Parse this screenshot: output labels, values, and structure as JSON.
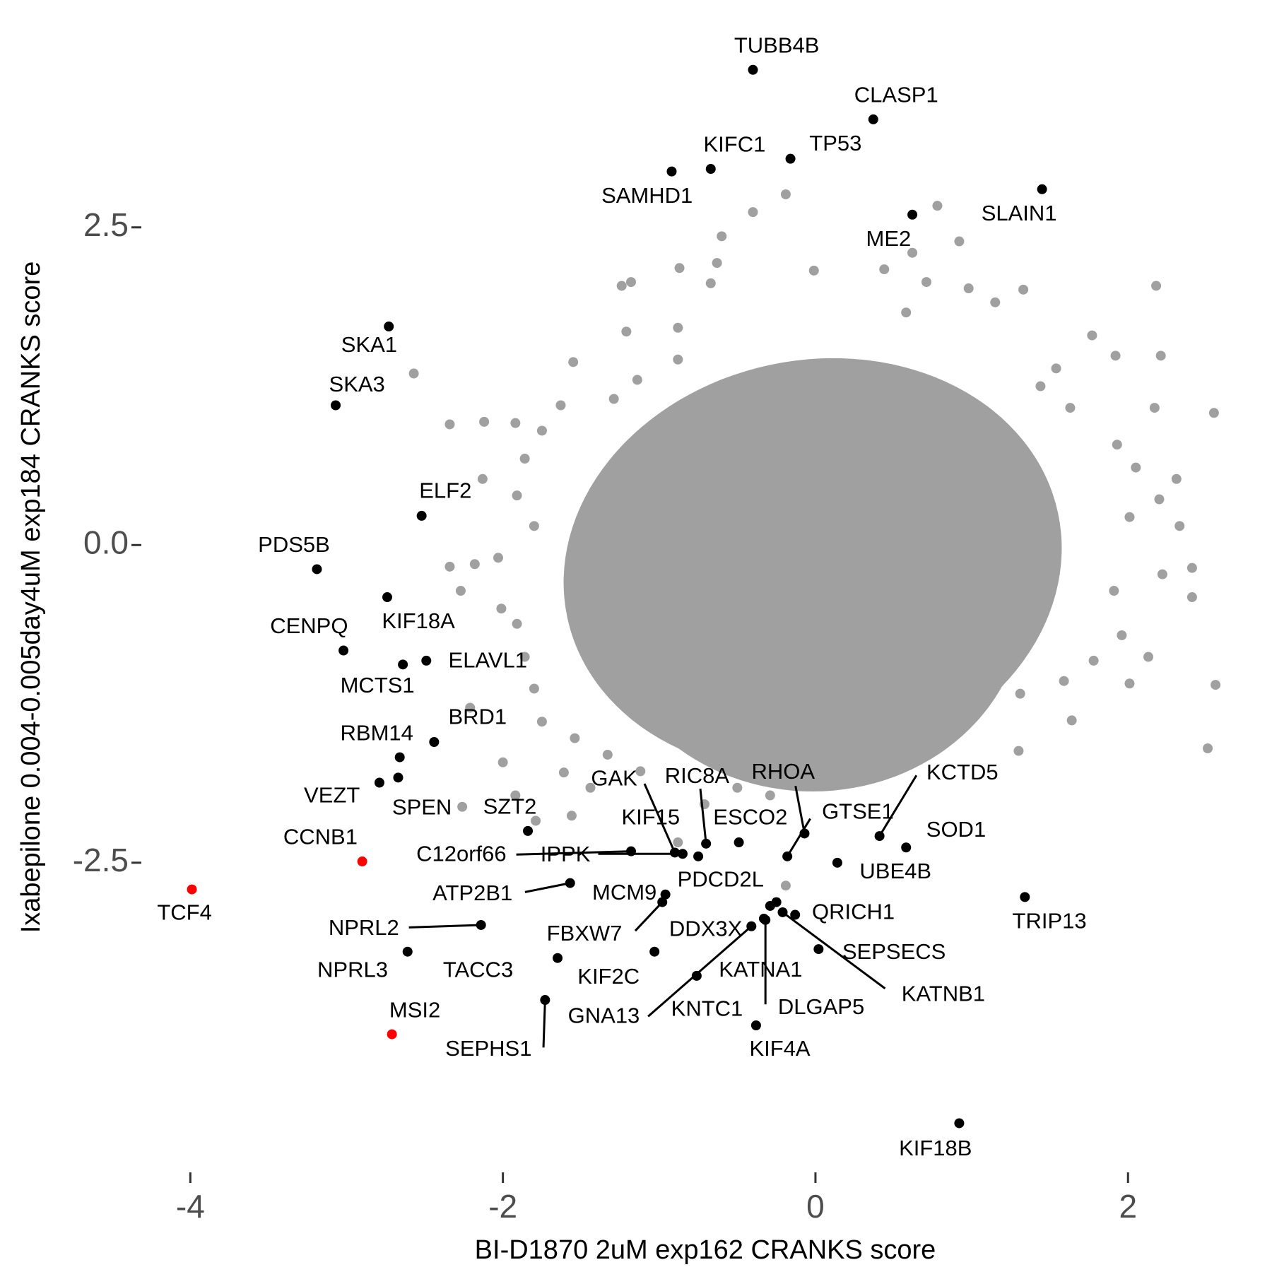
{
  "chart_data": {
    "type": "scatter",
    "x_label": "BI-D1870 2uM exp162 CRANKS score",
    "y_label": "Ixabepilone 0.004-0.005day4uM exp184 CRANKS score",
    "xlim": [
      -4.3,
      2.65
    ],
    "ylim": [
      -4.87,
      3.9
    ],
    "xticks": [
      -4,
      -2,
      0,
      2
    ],
    "yticks": [
      -2.5,
      {
        "value": 0,
        "label": "0.0"
      },
      2.5
    ],
    "grid": false,
    "series": [
      {
        "color": "#a0a0a0",
        "x": [
          -2.57,
          -2.34,
          -2.12,
          -1.92,
          -2.13,
          -2.34,
          -2.18,
          -2.03,
          -2.27,
          -2.21,
          -2.0,
          -1.92,
          -1.79,
          -1.56,
          -1.44,
          -1.61,
          -2.26,
          -0.88,
          -0.19,
          1.3,
          2.51,
          2.56,
          2.55,
          2.21,
          2.18,
          2.01,
          2.13,
          1.64,
          2.41,
          2.41,
          0.92,
          0.78,
          0.62,
          0.44,
          -0.19,
          -0.4,
          -0.6,
          -0.63,
          -0.87,
          -1.18,
          -1.24,
          -0.67,
          -0.01,
          0.98,
          0.71,
          1.33,
          0.58,
          1.15,
          1.77,
          1.92,
          -1.21,
          -0.88,
          -0.88,
          -1.29,
          -1.14,
          -1.55,
          -1.63,
          -1.75,
          -1.86,
          -1.91,
          -1.8,
          1.93,
          2.17,
          2.31,
          2.05,
          2.01,
          2.2,
          1.96,
          1.78,
          1.59,
          1.31,
          1.02,
          0.65,
          0.34,
          0.13,
          -0.08,
          -0.29,
          -0.5,
          -0.71,
          -1.12,
          -1.33,
          -1.54,
          -1.75,
          -1.8,
          -1.86,
          -1.91,
          -2.01,
          2.33,
          2.22,
          1.91,
          1.63,
          1.54,
          1.44
        ],
        "y": [
          1.35,
          0.95,
          0.97,
          0.96,
          0.52,
          -0.17,
          -0.15,
          -0.1,
          -0.36,
          -1.28,
          -1.71,
          -1.97,
          -2.17,
          -2.13,
          -1.91,
          -1.79,
          -2.06,
          -2.34,
          -2.68,
          -1.62,
          -1.6,
          -1.1,
          1.04,
          1.49,
          2.04,
          -1.09,
          -0.88,
          -1.38,
          -0.18,
          -0.41,
          2.39,
          2.67,
          2.3,
          2.17,
          2.76,
          2.62,
          2.43,
          2.22,
          2.18,
          2.07,
          2.04,
          2.06,
          2.16,
          2.02,
          2.07,
          2.01,
          1.83,
          1.91,
          1.65,
          1.49,
          1.68,
          1.71,
          1.46,
          1.15,
          1.3,
          1.44,
          1.1,
          0.9,
          0.68,
          0.39,
          0.15,
          0.79,
          1.08,
          0.52,
          0.61,
          0.22,
          0.36,
          -0.71,
          -0.91,
          -1.07,
          -1.17,
          -1.26,
          -1.46,
          -1.65,
          -1.52,
          -1.71,
          -1.97,
          -1.91,
          -2.04,
          -1.78,
          -1.65,
          -1.52,
          -1.39,
          -1.13,
          -0.88,
          -0.62,
          -0.5,
          0.15,
          -0.23,
          -0.36,
          1.08,
          1.39,
          1.25
        ]
      },
      {
        "color": "#000000",
        "labels": [
          "TUBB4B",
          "CLASP1",
          "KIFC1",
          "TP53",
          "SAMHD1",
          "SLAIN1",
          "ME2",
          "SKA1",
          "SKA3",
          "ELF2",
          "PDS5B",
          "KIF18A",
          "CENPQ",
          "ELAVL1",
          "MCTS1",
          "BRD1",
          "RBM14",
          "SPEN",
          "VEZT",
          "SZT2",
          "C12orf66",
          "IPPK",
          "GAK",
          "KIF15",
          "RIC8A",
          "ESCO2",
          "RHOA",
          "GTSE1",
          "KCTD5",
          "SOD1",
          "UBE4B",
          "TRIP13",
          "ATP2B1",
          "MCM9",
          "PDCD2L",
          "QRICH1",
          "DDX3X",
          "NPRL2",
          "FBXW7",
          "NPRL3",
          "KIF2C",
          "TACC3",
          "SEPSECS",
          "KATNA1",
          "KATNB1",
          "GNA13",
          "KNTC1",
          "DLGAP5",
          "KIF4A",
          "SEPHS1",
          "KIF18B"
        ],
        "x": [
          -0.4,
          0.37,
          -0.67,
          -0.16,
          -0.92,
          1.45,
          0.62,
          -2.73,
          -3.07,
          -2.52,
          -3.19,
          -2.74,
          -3.02,
          -2.49,
          -2.64,
          -2.44,
          -2.66,
          -2.67,
          -2.79,
          -1.84,
          -1.18,
          -0.85,
          -0.9,
          -0.75,
          -0.7,
          -0.49,
          -0.07,
          -0.18,
          0.41,
          0.58,
          0.14,
          1.34,
          -1.57,
          -0.96,
          -0.25,
          -0.13,
          -0.33,
          -2.14,
          -0.98,
          -2.61,
          -1.03,
          -1.65,
          0.02,
          -0.76,
          -0.21,
          -0.41,
          -0.29,
          -0.32,
          -0.38,
          -1.73,
          0.92
        ],
        "y": [
          3.74,
          3.35,
          2.96,
          3.04,
          2.94,
          2.8,
          2.6,
          1.72,
          1.1,
          0.23,
          -0.19,
          -0.41,
          -0.83,
          -0.91,
          -0.94,
          -1.55,
          -1.67,
          -1.83,
          -1.87,
          -2.25,
          -2.41,
          -2.43,
          -2.42,
          -2.45,
          -2.35,
          -2.34,
          -2.27,
          -2.45,
          -2.29,
          -2.38,
          -2.5,
          -2.77,
          -2.66,
          -2.75,
          -2.81,
          -2.91,
          -2.94,
          -2.99,
          -2.81,
          -3.2,
          -3.2,
          -3.25,
          -3.18,
          -3.39,
          -2.89,
          -3.0,
          -2.84,
          -2.95,
          -3.78,
          -3.58,
          -4.55
        ]
      },
      {
        "color": "#ff0000",
        "labels": [
          "CCNB1",
          "TCF4",
          "MSI2"
        ],
        "x": [
          -2.9,
          -3.99,
          -2.71
        ],
        "y": [
          -2.49,
          -2.71,
          -3.85
        ]
      }
    ]
  }
}
